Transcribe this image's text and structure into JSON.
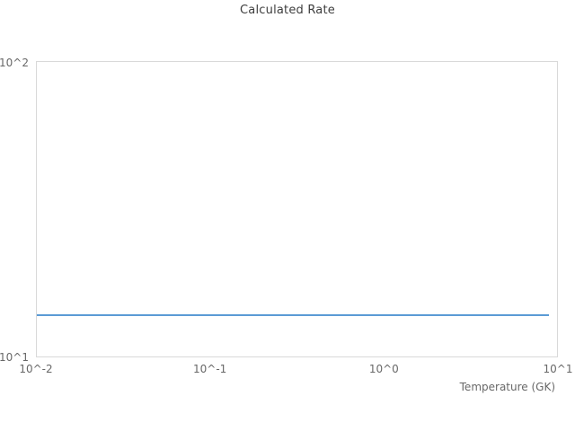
{
  "chart_data": {
    "type": "line",
    "title": "Calculated Rate",
    "xlabel": "Temperature (GK)",
    "ylabel": "",
    "xscale": "log",
    "yscale": "log",
    "xlim": [
      0.01,
      10
    ],
    "ylim": [
      10,
      100
    ],
    "x_tick_labels": [
      "10^-2",
      "10^-1",
      "10^0",
      "10^1"
    ],
    "y_tick_labels": [
      "10^1",
      "10^2"
    ],
    "grid": false,
    "legend": "none",
    "series": [
      {
        "name": "calculated-rate",
        "color": "#5b9bd5",
        "x": [
          0.01,
          9.0
        ],
        "y": [
          13.8,
          13.8
        ]
      }
    ]
  },
  "colors": {
    "background": "#ffffff",
    "plot_border": "#d9d9d9",
    "title_text": "#3d3d3d",
    "tick_text": "#686868",
    "line": "#5b9bd5"
  }
}
